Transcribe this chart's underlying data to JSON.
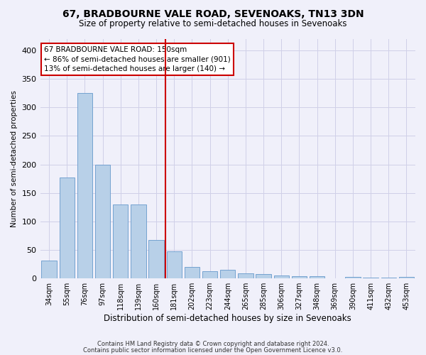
{
  "title": "67, BRADBOURNE VALE ROAD, SEVENOAKS, TN13 3DN",
  "subtitle": "Size of property relative to semi-detached houses in Sevenoaks",
  "xlabel": "Distribution of semi-detached houses by size in Sevenoaks",
  "ylabel": "Number of semi-detached properties",
  "categories": [
    "34sqm",
    "55sqm",
    "76sqm",
    "97sqm",
    "118sqm",
    "139sqm",
    "160sqm",
    "181sqm",
    "202sqm",
    "223sqm",
    "244sqm",
    "265sqm",
    "285sqm",
    "306sqm",
    "327sqm",
    "348sqm",
    "369sqm",
    "390sqm",
    "411sqm",
    "432sqm",
    "453sqm"
  ],
  "values": [
    32,
    177,
    325,
    199,
    130,
    130,
    68,
    47,
    20,
    13,
    15,
    9,
    8,
    5,
    4,
    4,
    0,
    3,
    1,
    1,
    3
  ],
  "bar_color_normal": "#b8d0e8",
  "bar_edge_color": "#6699cc",
  "highlight_index": 6,
  "vline_color": "#cc0000",
  "annotation_text": "67 BRADBOURNE VALE ROAD: 150sqm\n← 86% of semi-detached houses are smaller (901)\n13% of semi-detached houses are larger (140) →",
  "annotation_box_color": "#cc0000",
  "footnote1": "Contains HM Land Registry data © Crown copyright and database right 2024.",
  "footnote2": "Contains public sector information licensed under the Open Government Licence v3.0.",
  "ylim": [
    0,
    420
  ],
  "yticks": [
    0,
    50,
    100,
    150,
    200,
    250,
    300,
    350,
    400
  ],
  "background_color": "#f0f0fa",
  "grid_color": "#d0d0e8",
  "title_fontsize": 10,
  "subtitle_fontsize": 8.5,
  "tick_fontsize": 7,
  "ylabel_fontsize": 7.5,
  "xlabel_fontsize": 8.5,
  "annotation_fontsize": 7.5
}
